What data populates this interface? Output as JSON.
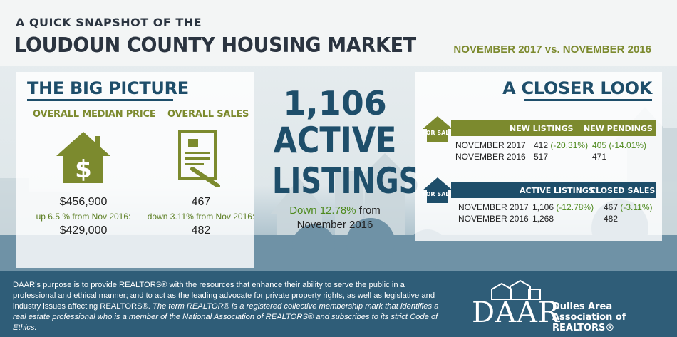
{
  "header": {
    "kicker": "A QUICK SNAPSHOT OF THE",
    "title": "LOUDOUN COUNTY HOUSING MARKET",
    "date_range": "NOVEMBER 2017 vs. NOVEMBER 2016"
  },
  "big_picture": {
    "title": "THE BIG PICTURE",
    "median": {
      "heading": "OVERALL MEDIAN PRICE",
      "icon": "house-dollar-icon",
      "current": "$456,900",
      "change": "up 6.5 % from Nov 2016:",
      "previous": "$429,000"
    },
    "sales": {
      "heading": "OVERALL SALES",
      "icon": "contract-pen-icon",
      "current": "467",
      "change": "down 3.11% from Nov 2016:",
      "previous": "482"
    }
  },
  "active": {
    "count": "1,106",
    "label1": "ACTIVE",
    "label2": "LISTINGS",
    "change_green": "Down 12.78%",
    "change_rest": " from",
    "change_line2": "November 2016"
  },
  "closer_look": {
    "title": "A CLOSER LOOK",
    "table1": {
      "badge": "FOR SALE",
      "headers": [
        "NEW LISTINGS",
        "NEW PENDINGS"
      ],
      "rows": [
        {
          "label": "NOVEMBER 2017",
          "a": "412",
          "a_change": "(-20.31%)",
          "b": "405 (-14.01%)"
        },
        {
          "label": "NOVEMBER 2016",
          "a": "517",
          "a_change": "",
          "b": "471"
        }
      ]
    },
    "table2": {
      "badge": "FOR SALE",
      "headers": [
        "ACTIVE LISTINGS",
        "CLOSED SALES"
      ],
      "rows": [
        {
          "label": "NOVEMBER 2017",
          "a": "1,106",
          "a_change": "(-12.78%)",
          "b": "467",
          "b_change": "(-3.11%)"
        },
        {
          "label": "NOVEMBER 2016",
          "a": "1,268",
          "a_change": "",
          "b": "482",
          "b_change": ""
        }
      ]
    }
  },
  "footer": {
    "p1": "DAAR’s purpose is to provide REALTORS® with the resources that enhance their ability to serve the public in a professional and ethical manner; and to act as the leading advocate for private property rights, as well as legislative and industry issues affecting REALTORS®. ",
    "p2": "The term REALTOR® is a registered collective membership mark that identifies a real estate professional who is a member of the National Association of REALTORS® and subscribes to its strict Code of Ethics.",
    "logo": "DAAR",
    "org_line1": "Dulles Area",
    "org_line2": "Association of REALTORS®"
  },
  "colors": {
    "navy": "#1e4e6a",
    "olive": "#7c8a2e",
    "green": "#4e8a1e"
  }
}
